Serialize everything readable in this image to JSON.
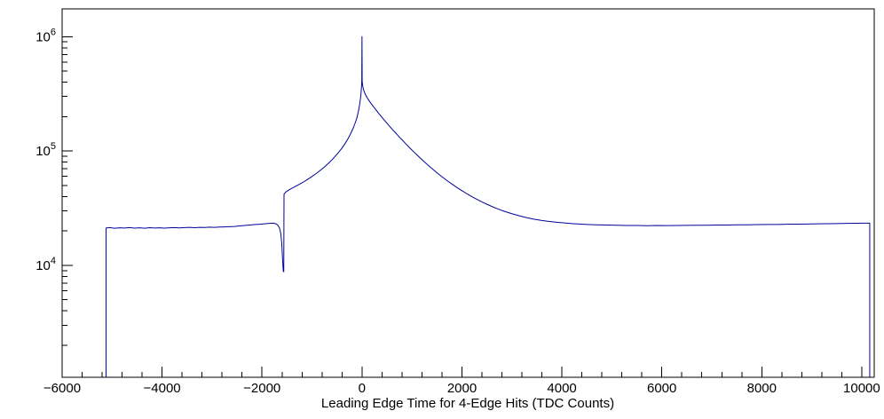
{
  "page": {
    "background": "#ffffff"
  },
  "chart_data": {
    "type": "line",
    "title": "",
    "xlabel": "Leading Edge Time for 4-Edge Hits (TDC Counts)",
    "ylabel": "",
    "y_scale": "log",
    "xlim": [
      -6000,
      10250
    ],
    "ylim": [
      1050,
      1750000
    ],
    "x_major_step": 2000,
    "x_minor_step": 400,
    "x_ticks": [
      -6000,
      -4000,
      -2000,
      0,
      2000,
      4000,
      6000,
      8000,
      10000
    ],
    "x_tick_labels": [
      "−6000",
      "−4000",
      "−2000",
      "0",
      "2000",
      "4000",
      "6000",
      "8000",
      "10000"
    ],
    "y_ticks": [
      {
        "value": 10000,
        "label": "10^4",
        "mantissa": "10",
        "exponent": "4"
      },
      {
        "value": 100000,
        "label": "10^5",
        "mantissa": "10",
        "exponent": "5"
      },
      {
        "value": 1000000,
        "label": "10^6",
        "mantissa": "10",
        "exponent": "6"
      }
    ],
    "legend": "none",
    "grid": "off",
    "colors": {
      "line": "#000099",
      "axis": "#000000",
      "text": "#000000",
      "background": "#ffffff"
    },
    "points": [
      [
        -5120,
        1050
      ],
      [
        -5120,
        21200
      ],
      [
        -5050,
        21400
      ],
      [
        -4950,
        21100
      ],
      [
        -4850,
        21300
      ],
      [
        -4750,
        21200
      ],
      [
        -4650,
        21400
      ],
      [
        -4550,
        21150
      ],
      [
        -4450,
        21300
      ],
      [
        -4350,
        21100
      ],
      [
        -4250,
        21350
      ],
      [
        -4150,
        21200
      ],
      [
        -4050,
        21300
      ],
      [
        -3950,
        21150
      ],
      [
        -3850,
        21300
      ],
      [
        -3750,
        21400
      ],
      [
        -3650,
        21250
      ],
      [
        -3550,
        21400
      ],
      [
        -3450,
        21500
      ],
      [
        -3350,
        21350
      ],
      [
        -3250,
        21500
      ],
      [
        -3150,
        21450
      ],
      [
        -3050,
        21600
      ],
      [
        -2950,
        21500
      ],
      [
        -2850,
        21650
      ],
      [
        -2750,
        21700
      ],
      [
        -2650,
        21800
      ],
      [
        -2550,
        21900
      ],
      [
        -2450,
        22100
      ],
      [
        -2350,
        22300
      ],
      [
        -2250,
        22500
      ],
      [
        -2150,
        22700
      ],
      [
        -2050,
        22900
      ],
      [
        -1950,
        23100
      ],
      [
        -1850,
        23300
      ],
      [
        -1780,
        23400
      ],
      [
        -1720,
        23100
      ],
      [
        -1680,
        22300
      ],
      [
        -1650,
        21200
      ],
      [
        -1625,
        19000
      ],
      [
        -1605,
        15500
      ],
      [
        -1590,
        11500
      ],
      [
        -1575,
        8900
      ],
      [
        -1565,
        8800
      ],
      [
        -1560,
        42000
      ],
      [
        -1520,
        44000
      ],
      [
        -1450,
        46000
      ],
      [
        -1380,
        47800
      ],
      [
        -1310,
        49600
      ],
      [
        -1240,
        51500
      ],
      [
        -1170,
        53600
      ],
      [
        -1100,
        56000
      ],
      [
        -1030,
        58700
      ],
      [
        -960,
        61600
      ],
      [
        -890,
        64800
      ],
      [
        -820,
        68500
      ],
      [
        -750,
        72700
      ],
      [
        -680,
        77500
      ],
      [
        -610,
        83000
      ],
      [
        -540,
        89500
      ],
      [
        -470,
        97000
      ],
      [
        -400,
        106000
      ],
      [
        -340,
        116000
      ],
      [
        -280,
        128000
      ],
      [
        -230,
        141000
      ],
      [
        -180,
        157000
      ],
      [
        -140,
        174000
      ],
      [
        -100,
        196000
      ],
      [
        -70,
        224000
      ],
      [
        -45,
        258000
      ],
      [
        -25,
        300000
      ],
      [
        -12,
        350000
      ],
      [
        -4,
        410000
      ],
      [
        0,
        1000000
      ],
      [
        4,
        408000
      ],
      [
        12,
        378000
      ],
      [
        25,
        352000
      ],
      [
        45,
        330000
      ],
      [
        70,
        311000
      ],
      [
        100,
        294000
      ],
      [
        140,
        276000
      ],
      [
        180,
        261000
      ],
      [
        230,
        244000
      ],
      [
        280,
        229000
      ],
      [
        340,
        212000
      ],
      [
        400,
        197000
      ],
      [
        470,
        181000
      ],
      [
        540,
        167000
      ],
      [
        610,
        154000
      ],
      [
        680,
        143000
      ],
      [
        750,
        132000
      ],
      [
        820,
        123000
      ],
      [
        890,
        114000
      ],
      [
        960,
        106000
      ],
      [
        1030,
        99000
      ],
      [
        1100,
        92500
      ],
      [
        1170,
        86500
      ],
      [
        1240,
        81000
      ],
      [
        1310,
        76000
      ],
      [
        1380,
        71500
      ],
      [
        1450,
        67300
      ],
      [
        1520,
        63500
      ],
      [
        1600,
        59500
      ],
      [
        1700,
        55200
      ],
      [
        1800,
        51400
      ],
      [
        1900,
        48000
      ],
      [
        2000,
        45000
      ],
      [
        2100,
        42300
      ],
      [
        2200,
        39900
      ],
      [
        2300,
        37800
      ],
      [
        2400,
        35900
      ],
      [
        2500,
        34200
      ],
      [
        2600,
        32700
      ],
      [
        2700,
        31400
      ],
      [
        2800,
        30200
      ],
      [
        2900,
        29200
      ],
      [
        3000,
        28300
      ],
      [
        3150,
        27100
      ],
      [
        3300,
        26100
      ],
      [
        3450,
        25300
      ],
      [
        3600,
        24700
      ],
      [
        3750,
        24200
      ],
      [
        3900,
        23800
      ],
      [
        4050,
        23500
      ],
      [
        4200,
        23200
      ],
      [
        4350,
        23000
      ],
      [
        4500,
        22800
      ],
      [
        4700,
        22600
      ],
      [
        4900,
        22500
      ],
      [
        5100,
        22400
      ],
      [
        5300,
        22300
      ],
      [
        5500,
        22300
      ],
      [
        5700,
        22200
      ],
      [
        5900,
        22300
      ],
      [
        6100,
        22250
      ],
      [
        6300,
        22300
      ],
      [
        6500,
        22350
      ],
      [
        6700,
        22400
      ],
      [
        6900,
        22400
      ],
      [
        7100,
        22500
      ],
      [
        7300,
        22500
      ],
      [
        7500,
        22600
      ],
      [
        7700,
        22650
      ],
      [
        7900,
        22700
      ],
      [
        8100,
        22800
      ],
      [
        8300,
        22800
      ],
      [
        8500,
        22900
      ],
      [
        8700,
        22950
      ],
      [
        8900,
        23000
      ],
      [
        9100,
        23100
      ],
      [
        9300,
        23150
      ],
      [
        9500,
        23200
      ],
      [
        9700,
        23300
      ],
      [
        9900,
        23350
      ],
      [
        10050,
        23400
      ],
      [
        10160,
        23400
      ],
      [
        10160,
        1050
      ]
    ]
  }
}
